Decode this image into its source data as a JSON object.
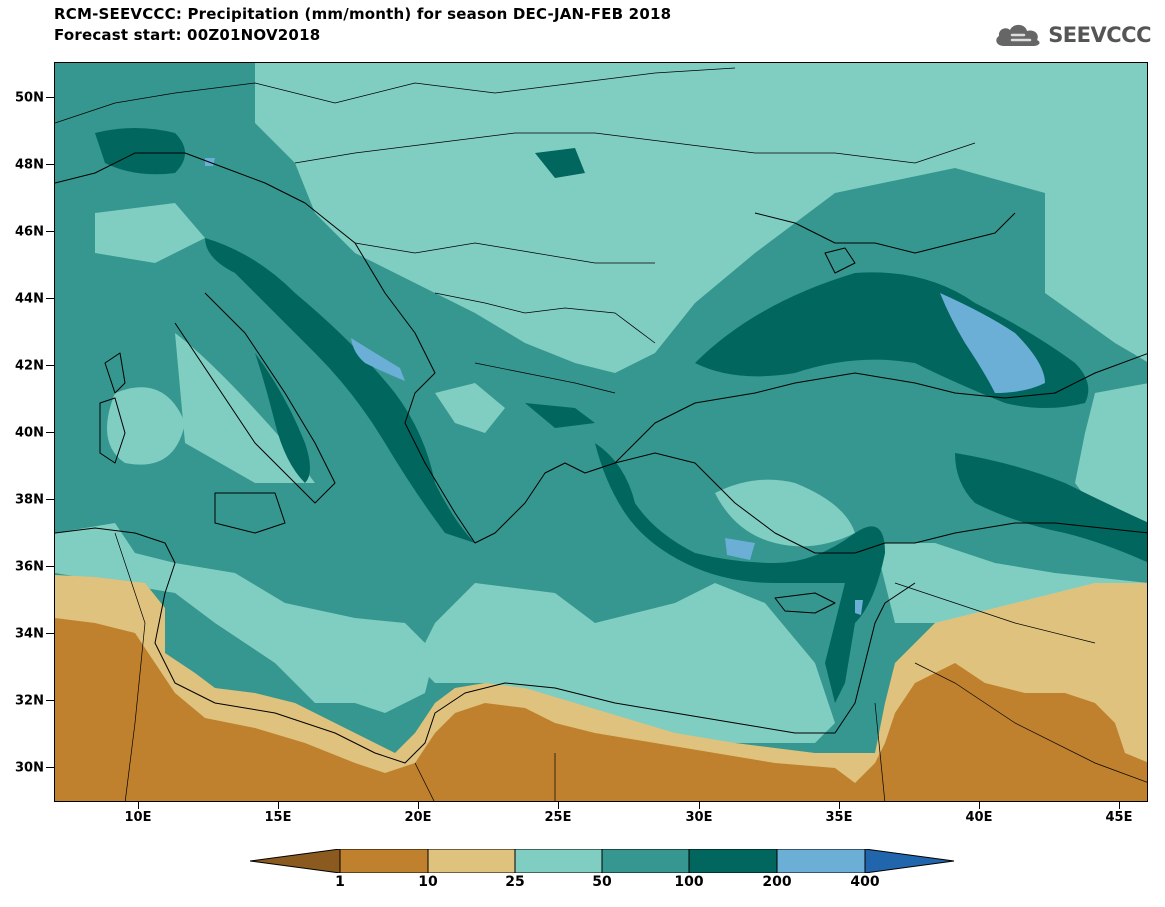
{
  "title": {
    "line1": "RCM-SEEVCCC: Precipitation (mm/month) for season DEC-JAN-FEB 2018",
    "line2": "Forecast start: 00Z01NOV2018"
  },
  "logo": {
    "text": "SEEVCCC",
    "icon": "cloud-icon"
  },
  "map": {
    "projection": "lat-lon",
    "extent": {
      "lon_min": 7,
      "lon_max": 46,
      "lat_min": 29,
      "lat_max": 51
    },
    "y_ticks": [
      "30N",
      "32N",
      "34N",
      "36N",
      "38N",
      "40N",
      "42N",
      "44N",
      "46N",
      "48N",
      "50N"
    ],
    "x_ticks": [
      "10E",
      "15E",
      "20E",
      "25E",
      "30E",
      "35E",
      "40E",
      "45E"
    ]
  },
  "legend": {
    "levels": [
      "1",
      "10",
      "25",
      "50",
      "100",
      "200",
      "400"
    ],
    "colors": [
      "#8b5a1e",
      "#bf812d",
      "#dfc27d",
      "#80cdc1",
      "#35978f",
      "#01665e",
      "#6baed6",
      "#2166ac"
    ]
  }
}
